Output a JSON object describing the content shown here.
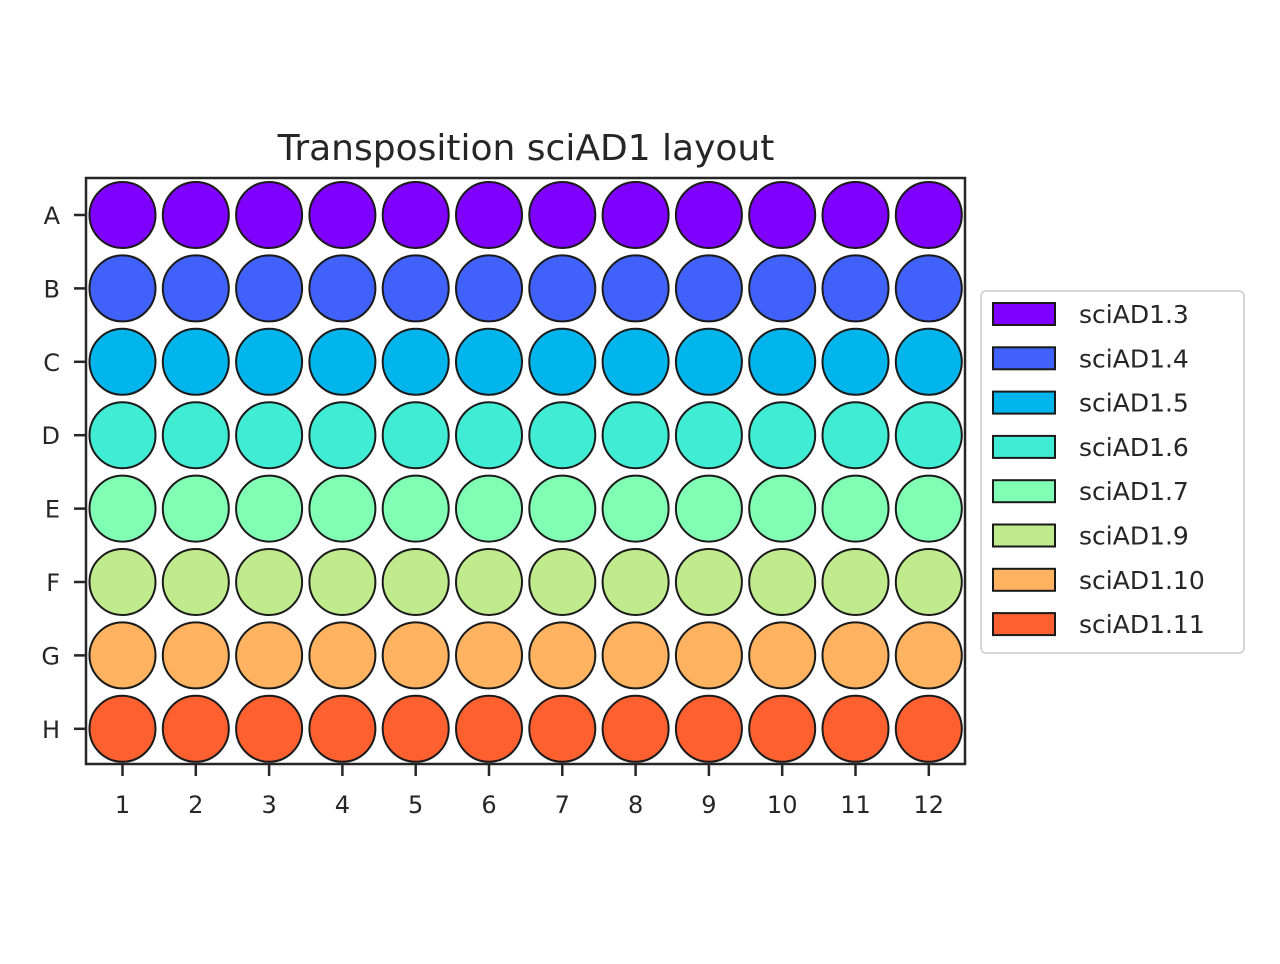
{
  "chart_data": {
    "type": "scatter",
    "title": "Transposition sciAD1 layout",
    "rows": [
      "A",
      "B",
      "C",
      "D",
      "E",
      "F",
      "G",
      "H"
    ],
    "columns": [
      "1",
      "2",
      "3",
      "4",
      "5",
      "6",
      "7",
      "8",
      "9",
      "10",
      "11",
      "12"
    ],
    "series": [
      {
        "name": "sciAD1.3",
        "row": "A",
        "color": "#8000ff",
        "wells": [
          1,
          2,
          3,
          4,
          5,
          6,
          7,
          8,
          9,
          10,
          11,
          12
        ]
      },
      {
        "name": "sciAD1.4",
        "row": "B",
        "color": "#4062fa",
        "wells": [
          1,
          2,
          3,
          4,
          5,
          6,
          7,
          8,
          9,
          10,
          11,
          12
        ]
      },
      {
        "name": "sciAD1.5",
        "row": "C",
        "color": "#00b5eb",
        "wells": [
          1,
          2,
          3,
          4,
          5,
          6,
          7,
          8,
          9,
          10,
          11,
          12
        ]
      },
      {
        "name": "sciAD1.6",
        "row": "D",
        "color": "#40ecd4",
        "wells": [
          1,
          2,
          3,
          4,
          5,
          6,
          7,
          8,
          9,
          10,
          11,
          12
        ]
      },
      {
        "name": "sciAD1.7",
        "row": "E",
        "color": "#80ffb4",
        "wells": [
          1,
          2,
          3,
          4,
          5,
          6,
          7,
          8,
          9,
          10,
          11,
          12
        ]
      },
      {
        "name": "sciAD1.9",
        "row": "F",
        "color": "#c0eb8d",
        "wells": [
          1,
          2,
          3,
          4,
          5,
          6,
          7,
          8,
          9,
          10,
          11,
          12
        ]
      },
      {
        "name": "sciAD1.10",
        "row": "G",
        "color": "#ffb360",
        "wells": [
          1,
          2,
          3,
          4,
          5,
          6,
          7,
          8,
          9,
          10,
          11,
          12
        ]
      },
      {
        "name": "sciAD1.11",
        "row": "H",
        "color": "#ff6030",
        "wells": [
          1,
          2,
          3,
          4,
          5,
          6,
          7,
          8,
          9,
          10,
          11,
          12
        ]
      }
    ],
    "legend_position": "right",
    "grid": false
  }
}
